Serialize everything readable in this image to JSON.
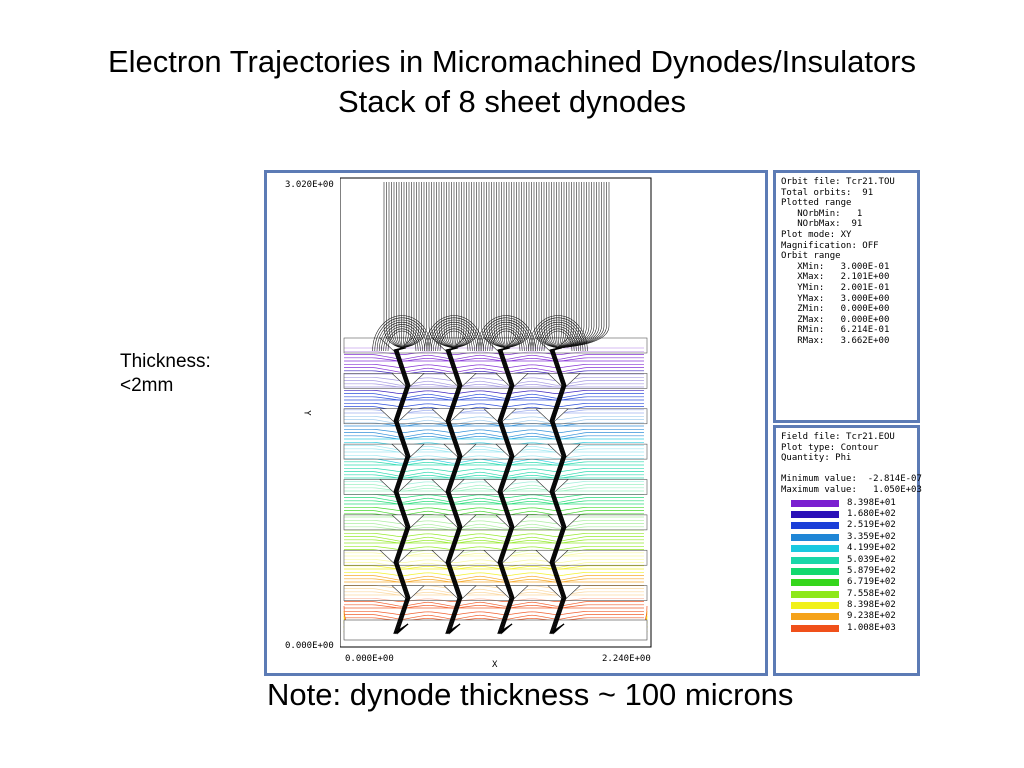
{
  "slide": {
    "title_line1": "Electron Trajectories in Micromachined Dynodes/Insulators",
    "title_line2": "Stack of 8 sheet dynodes",
    "thickness_label_1": "Thickness:",
    "thickness_label_2": "<2mm",
    "note": "Note: dynode thickness ~ 100 microns"
  },
  "plot": {
    "y_max_label": "3.020E+00",
    "y_min_label": "0.000E+00",
    "x_min_label": "0.000E+00",
    "x_max_label": "2.240E+00",
    "x_axis_name": "X",
    "y_axis_name": "Y"
  },
  "orbit_panel": {
    "lines": [
      "Orbit file: Tcr21.TOU",
      "Total orbits:  91",
      "Plotted range",
      "   NOrbMin:   1",
      "   NOrbMax:  91",
      "Plot mode: XY",
      "Magnification: OFF",
      "Orbit range",
      "   XMin:   3.000E-01",
      "   XMax:   2.101E+00",
      "   YMin:   2.001E-01",
      "   YMax:   3.000E+00",
      "   ZMin:   0.000E+00",
      "   ZMax:   0.000E+00",
      "   RMin:   6.214E-01",
      "   RMax:   3.662E+00"
    ]
  },
  "field_panel": {
    "lines": [
      "Field file: Tcr21.EOU",
      "Plot type: Contour",
      "Quantity: Phi",
      "",
      "Minimum value:  -2.814E-07",
      "Maximum value:   1.050E+03"
    ],
    "legend": [
      {
        "value": "8.398E+01",
        "color": "#7a1fd0"
      },
      {
        "value": "1.680E+02",
        "color": "#2a10b8"
      },
      {
        "value": "2.519E+02",
        "color": "#1b3fd8"
      },
      {
        "value": "3.359E+02",
        "color": "#1f86d6"
      },
      {
        "value": "4.199E+02",
        "color": "#19c9e0"
      },
      {
        "value": "5.039E+02",
        "color": "#1ad7a8"
      },
      {
        "value": "5.879E+02",
        "color": "#13d96e"
      },
      {
        "value": "6.719E+02",
        "color": "#35d61c"
      },
      {
        "value": "7.558E+02",
        "color": "#8de81a"
      },
      {
        "value": "8.398E+02",
        "color": "#f1f11a"
      },
      {
        "value": "9.238E+02",
        "color": "#f5a21a"
      },
      {
        "value": "1.008E+03",
        "color": "#f0501a"
      }
    ]
  }
}
